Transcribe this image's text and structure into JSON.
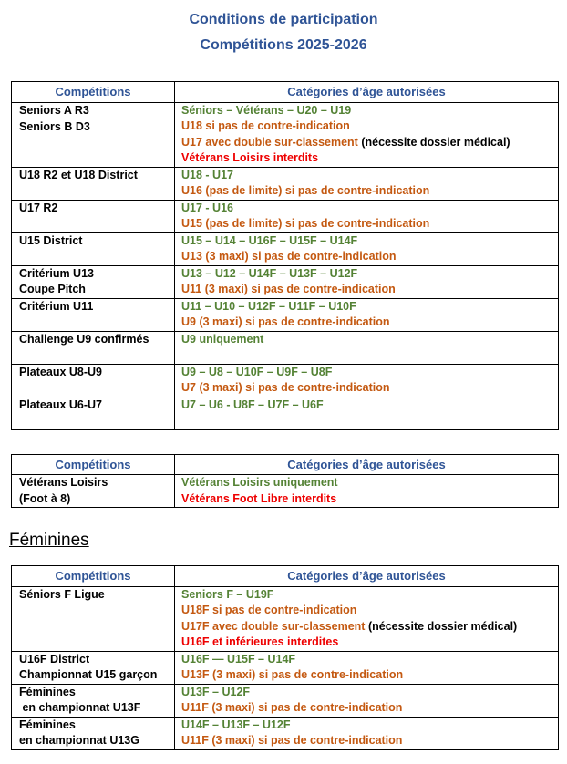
{
  "title": {
    "line1": "Conditions de participation",
    "line2": "Compétitions 2025-2026"
  },
  "section_heading": "Féminines",
  "colors": {
    "title_blue": "#2F5496",
    "header_blue": "#2F5496",
    "allowed_green": "#548235",
    "conditional_orange": "#C45911",
    "forbidden_red": "#EE0000",
    "border_black": "#000000"
  },
  "tables": [
    {
      "headers": [
        "Compétitions",
        "Catégories d’âge autorisées"
      ],
      "rows": [
        {
          "left": [
            {
              "lines": [
                "Seniors A R3"
              ],
              "divider_after": true
            },
            {
              "lines": [
                "Seniors B D3"
              ]
            }
          ],
          "right": [
            [
              {
                "t": "Séniors – Vétérans – U20 – U19",
                "c": "green"
              }
            ],
            [
              {
                "t": "U18 si pas de contre-indication",
                "c": "orange"
              }
            ],
            [
              {
                "t": "U17 avec double sur-classement ",
                "c": "orange"
              },
              {
                "t": "(nécessite dossier médical)",
                "c": "black"
              }
            ],
            [
              {
                "t": "Vétérans Loisirs interdits",
                "c": "red"
              }
            ]
          ]
        },
        {
          "left": [
            {
              "lines": [
                "U18 R2 et U18 District"
              ]
            }
          ],
          "right": [
            [
              {
                "t": "U18 - U17",
                "c": "green"
              }
            ],
            [
              {
                "t": "U16 (pas de limite) si pas de contre-indication",
                "c": "orange"
              }
            ]
          ]
        },
        {
          "left": [
            {
              "lines": [
                "U17 R2"
              ]
            }
          ],
          "right": [
            [
              {
                "t": "U17 - U16",
                "c": "green"
              }
            ],
            [
              {
                "t": "U15 (pas de limite) si pas de contre-indication",
                "c": "orange"
              }
            ]
          ]
        },
        {
          "left": [
            {
              "lines": [
                "U15 District"
              ]
            }
          ],
          "right": [
            [
              {
                "t": "U15 – U14 – U16F – U15F – U14F",
                "c": "green"
              }
            ],
            [
              {
                "t": "U13 (3 maxi) si pas de contre-indication",
                "c": "orange"
              }
            ]
          ]
        },
        {
          "left": [
            {
              "lines": [
                "Critérium U13",
                "Coupe Pitch"
              ]
            }
          ],
          "right": [
            [
              {
                "t": "U13 – U12 – U14F – U13F – U12F",
                "c": "green"
              }
            ],
            [
              {
                "t": "U11 (3 maxi) si pas de contre-indication",
                "c": "orange"
              }
            ]
          ]
        },
        {
          "left": [
            {
              "lines": [
                "Critérium U11"
              ]
            }
          ],
          "right": [
            [
              {
                "t": "U11 – U10 – U12F – U11F – U10F",
                "c": "green"
              }
            ],
            [
              {
                "t": "U9 (3 maxi) si pas de contre-indication",
                "c": "orange"
              }
            ]
          ]
        },
        {
          "left": [
            {
              "lines": [
                "Challenge U9 confirmés"
              ]
            }
          ],
          "min_lines": 2,
          "right": [
            [
              {
                "t": "U9 uniquement",
                "c": "green"
              }
            ]
          ]
        },
        {
          "left": [
            {
              "lines": [
                "Plateaux U8-U9"
              ]
            }
          ],
          "right": [
            [
              {
                "t": "U9 – U8 – U10F – U9F – U8F",
                "c": "green"
              }
            ],
            [
              {
                "t": "U7 (3 maxi) si pas de contre-indication",
                "c": "orange"
              }
            ]
          ]
        },
        {
          "left": [
            {
              "lines": [
                "Plateaux U6-U7"
              ]
            }
          ],
          "min_lines": 2,
          "right": [
            [
              {
                "t": "U7 – U6 - U8F – U7F – U6F",
                "c": "green"
              }
            ]
          ]
        }
      ]
    },
    {
      "headers": [
        "Compétitions",
        "Catégories d’âge autorisées"
      ],
      "rows": [
        {
          "left": [
            {
              "lines": [
                "Vétérans Loisirs",
                "(Foot à 8)"
              ]
            }
          ],
          "right": [
            [
              {
                "t": "Vétérans Loisirs uniquement",
                "c": "green"
              }
            ],
            [
              {
                "t": "Vétérans Foot Libre interdits",
                "c": "red"
              }
            ]
          ]
        }
      ]
    },
    {
      "headers": [
        "Compétitions",
        "Catégories d’âge autorisées"
      ],
      "rows": [
        {
          "left": [
            {
              "lines": [
                "Séniors F Ligue"
              ]
            }
          ],
          "right": [
            [
              {
                "t": "Seniors F – U19F",
                "c": "green"
              }
            ],
            [
              {
                "t": "U18F si pas de contre-indication",
                "c": "orange"
              }
            ],
            [
              {
                "t": "U17F avec double sur-classement ",
                "c": "orange"
              },
              {
                "t": "(nécessite dossier médical)",
                "c": "black"
              }
            ],
            [
              {
                "t": "U16F et inférieures interdites",
                "c": "red"
              }
            ]
          ]
        },
        {
          "left": [
            {
              "lines": [
                "U16F District",
                "Championnat U15 garçon"
              ]
            }
          ],
          "right": [
            [
              {
                "t": "U16F — U15F – U14F",
                "c": "green"
              }
            ],
            [
              {
                "t": "U13F (3 maxi) si pas de contre-indication",
                "c": "orange"
              }
            ]
          ]
        },
        {
          "left": [
            {
              "lines": [
                "Féminines",
                " en championnat U13F"
              ]
            }
          ],
          "right": [
            [
              {
                "t": "U13F – U12F",
                "c": "green"
              }
            ],
            [
              {
                "t": "U11F (3 maxi) si pas de contre-indication",
                "c": "orange"
              }
            ]
          ]
        },
        {
          "left": [
            {
              "lines": [
                "Féminines",
                "en championnat U13G"
              ]
            }
          ],
          "right": [
            [
              {
                "t": "U14F – U13F – U12F",
                "c": "green"
              }
            ],
            [
              {
                "t": "U11F (3 maxi) si pas de contre-indication",
                "c": "orange"
              }
            ]
          ]
        }
      ]
    }
  ]
}
